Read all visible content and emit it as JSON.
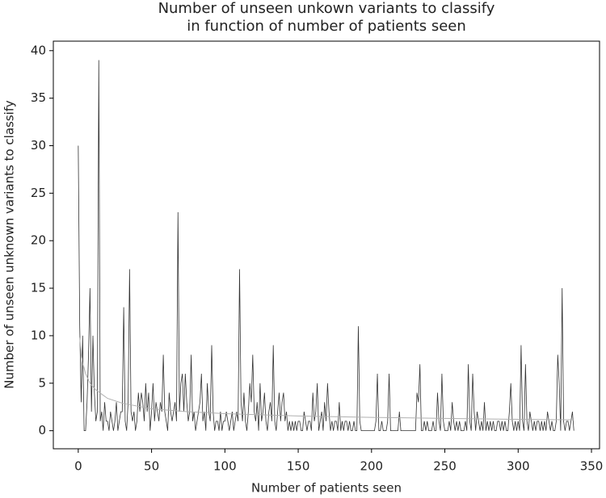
{
  "chart_data": {
    "type": "line",
    "title": [
      "Number of unseen unkown variants to classify",
      "in function of number of patients seen"
    ],
    "xlabel": "Number of patients seen",
    "ylabel": "Number of unseen unknown variants to classify",
    "xlim": [
      -17,
      355.5
    ],
    "ylim": [
      -1.9,
      41.0
    ],
    "xticks": [
      0,
      50,
      100,
      150,
      200,
      250,
      300,
      350
    ],
    "yticks": [
      0,
      5,
      10,
      15,
      20,
      25,
      30,
      35,
      40
    ],
    "grid": false,
    "series": [
      {
        "color": "#333333",
        "x": [
          0,
          1,
          2,
          3,
          4,
          5,
          6,
          7,
          8,
          9,
          10,
          11,
          12,
          13,
          14,
          15,
          16,
          17,
          18,
          19,
          20,
          21,
          22,
          23,
          24,
          25,
          26,
          27,
          28,
          29,
          30,
          31,
          32,
          33,
          34,
          35,
          36,
          37,
          38,
          39,
          40,
          41,
          42,
          43,
          44,
          45,
          46,
          47,
          48,
          49,
          50,
          51,
          52,
          53,
          54,
          55,
          56,
          57,
          58,
          59,
          60,
          61,
          62,
          63,
          64,
          65,
          66,
          67,
          68,
          69,
          70,
          71,
          72,
          73,
          74,
          75,
          76,
          77,
          78,
          79,
          80,
          81,
          82,
          83,
          84,
          85,
          86,
          87,
          88,
          89,
          90,
          91,
          92,
          93,
          94,
          95,
          96,
          97,
          98,
          99,
          100,
          101,
          102,
          103,
          104,
          105,
          106,
          107,
          108,
          109,
          110,
          111,
          112,
          113,
          114,
          115,
          116,
          117,
          118,
          119,
          120,
          121,
          122,
          123,
          124,
          125,
          126,
          127,
          128,
          129,
          130,
          131,
          132,
          133,
          134,
          135,
          136,
          137,
          138,
          139,
          140,
          141,
          142,
          143,
          144,
          145,
          146,
          147,
          148,
          149,
          150,
          151,
          152,
          153,
          154,
          155,
          156,
          157,
          158,
          159,
          160,
          161,
          162,
          163,
          164,
          165,
          166,
          167,
          168,
          169,
          170,
          171,
          172,
          173,
          174,
          175,
          176,
          177,
          178,
          179,
          180,
          181,
          182,
          183,
          184,
          185,
          186,
          187,
          188,
          189,
          190,
          191,
          192,
          193,
          194,
          195,
          196,
          197,
          198,
          199,
          200,
          201,
          202,
          203,
          204,
          205,
          206,
          207,
          208,
          209,
          210,
          211,
          212,
          213,
          214,
          215,
          216,
          217,
          218,
          219,
          220,
          221,
          222,
          223,
          224,
          225,
          226,
          227,
          228,
          229,
          230,
          231,
          232,
          233,
          234,
          235,
          236,
          237,
          238,
          239,
          240,
          241,
          242,
          243,
          244,
          245,
          246,
          247,
          248,
          249,
          250,
          251,
          252,
          253,
          254,
          255,
          256,
          257,
          258,
          259,
          260,
          261,
          262,
          263,
          264,
          265,
          266,
          267,
          268,
          269,
          270,
          271,
          272,
          273,
          274,
          275,
          276,
          277,
          278,
          279,
          280,
          281,
          282,
          283,
          284,
          285,
          286,
          287,
          288,
          289,
          290,
          291,
          292,
          293,
          294,
          295,
          296,
          297,
          298,
          299,
          300,
          301,
          302,
          303,
          304,
          305,
          306,
          307,
          308,
          309,
          310,
          311,
          312,
          313,
          314,
          315,
          316,
          317,
          318,
          319,
          320,
          321,
          322,
          323,
          324,
          325,
          326,
          327,
          328,
          329,
          330,
          331,
          332,
          333,
          334,
          335,
          336,
          337,
          338
        ],
        "values": [
          30,
          11,
          3,
          10,
          0,
          0,
          3,
          8,
          15,
          2,
          10,
          4,
          1,
          2,
          39,
          1,
          2,
          0,
          3,
          1,
          1,
          0,
          2,
          1,
          0,
          1,
          3,
          0,
          1,
          2,
          2,
          13,
          1,
          0,
          3,
          17,
          2,
          1,
          2,
          0,
          1,
          4,
          2,
          4,
          3,
          1,
          5,
          2,
          4,
          0,
          2,
          5,
          1,
          3,
          2,
          1,
          3,
          2,
          8,
          2,
          1,
          0,
          4,
          2,
          1,
          2,
          3,
          1,
          23,
          2,
          5,
          6,
          2,
          6,
          3,
          1,
          2,
          8,
          1,
          2,
          0,
          1,
          2,
          3,
          6,
          1,
          2,
          0,
          5,
          2,
          1,
          9,
          2,
          0,
          1,
          1,
          0,
          2,
          0,
          1,
          1,
          2,
          1,
          0,
          1,
          2,
          0,
          1,
          2,
          1,
          17,
          3,
          1,
          4,
          1,
          0,
          2,
          5,
          3,
          8,
          2,
          1,
          3,
          0,
          5,
          1,
          2,
          4,
          1,
          0,
          2,
          3,
          1,
          9,
          1,
          0,
          2,
          4,
          1,
          3,
          4,
          1,
          2,
          0,
          1,
          0,
          1,
          0,
          1,
          0,
          1,
          1,
          0,
          0,
          2,
          1,
          0,
          1,
          1,
          0,
          4,
          1,
          2,
          5,
          0,
          1,
          2,
          0,
          3,
          1,
          5,
          2,
          0,
          1,
          0,
          1,
          1,
          0,
          3,
          0,
          1,
          0,
          1,
          1,
          0,
          1,
          0,
          0,
          1,
          0,
          0,
          11,
          1,
          0,
          0,
          0,
          0,
          0,
          0,
          0,
          0,
          0,
          0,
          1,
          6,
          0,
          0,
          1,
          0,
          0,
          0,
          1,
          6,
          0,
          0,
          0,
          0,
          0,
          0,
          2,
          0,
          0,
          0,
          0,
          0,
          0,
          0,
          0,
          0,
          0,
          0,
          4,
          3,
          7,
          0,
          0,
          1,
          0,
          1,
          0,
          0,
          0,
          1,
          0,
          0,
          4,
          1,
          0,
          6,
          1,
          0,
          0,
          0,
          1,
          0,
          3,
          1,
          0,
          1,
          0,
          1,
          0,
          0,
          0,
          1,
          0,
          7,
          1,
          0,
          6,
          2,
          0,
          2,
          1,
          0,
          1,
          0,
          3,
          0,
          1,
          0,
          1,
          0,
          1,
          0,
          0,
          1,
          1,
          0,
          1,
          0,
          1,
          0,
          0,
          2,
          5,
          1,
          0,
          1,
          0,
          1,
          0,
          9,
          1,
          0,
          7,
          1,
          0,
          2,
          1,
          0,
          1,
          0,
          1,
          1,
          0,
          1,
          0,
          1,
          0,
          2,
          1,
          0,
          1,
          0,
          0,
          1,
          8,
          5,
          0,
          15,
          1,
          0,
          1,
          1,
          0,
          1,
          2,
          0
        ]
      },
      {
        "color": "#b0b0b0",
        "x": [
          1,
          2,
          3,
          5,
          8,
          12,
          20,
          30,
          50,
          75,
          100,
          150,
          200,
          250,
          300,
          338
        ],
        "values": [
          9.8,
          8,
          7.2,
          6,
          5,
          4.3,
          3.4,
          2.9,
          2.3,
          2,
          1.8,
          1.55,
          1.4,
          1.3,
          1.2,
          1.15
        ]
      }
    ]
  }
}
